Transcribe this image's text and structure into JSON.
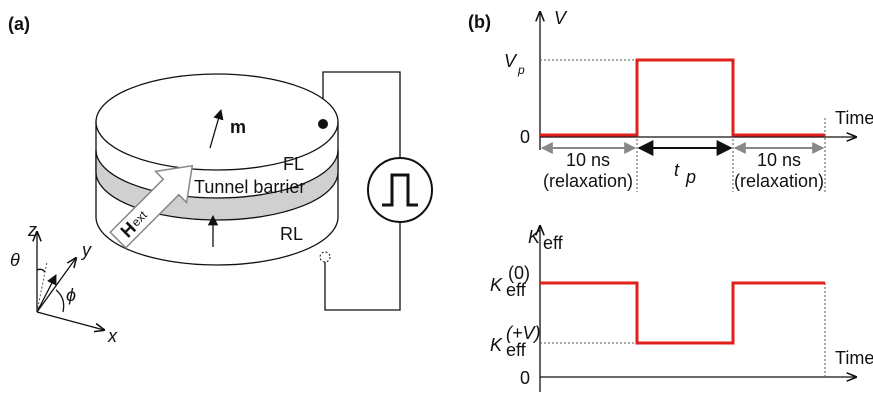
{
  "panel_a": {
    "label": "(a)",
    "layers": {
      "free_layer": "FL",
      "barrier": "Tunnel barrier",
      "reference_layer": "RL"
    },
    "magnetization": "m",
    "field": {
      "symbol": "H",
      "subscript": "ext"
    },
    "axes": {
      "z": "z",
      "y": "y",
      "x": "x",
      "theta": "θ",
      "phi": "ϕ"
    }
  },
  "panel_b": {
    "label": "(b)",
    "voltage_plot": {
      "y_label": "V",
      "pulse_level": {
        "symbol": "V",
        "subscript": "p"
      },
      "zero": "0",
      "x_label": "Time",
      "intervals": [
        {
          "duration": "10 ns",
          "note": "(relaxation)"
        },
        {
          "symbol": "t",
          "subscript": "p"
        },
        {
          "duration": "10 ns",
          "note": "(relaxation)"
        }
      ]
    },
    "anisotropy_plot": {
      "y_label": {
        "symbol": "K",
        "subscript": "eff"
      },
      "level_0": {
        "symbol": "K",
        "subscript": "eff",
        "superscript": "(0)"
      },
      "level_v": {
        "symbol": "K",
        "subscript": "eff",
        "superscript": "(+V)"
      },
      "zero": "0",
      "x_label": "Time"
    }
  }
}
